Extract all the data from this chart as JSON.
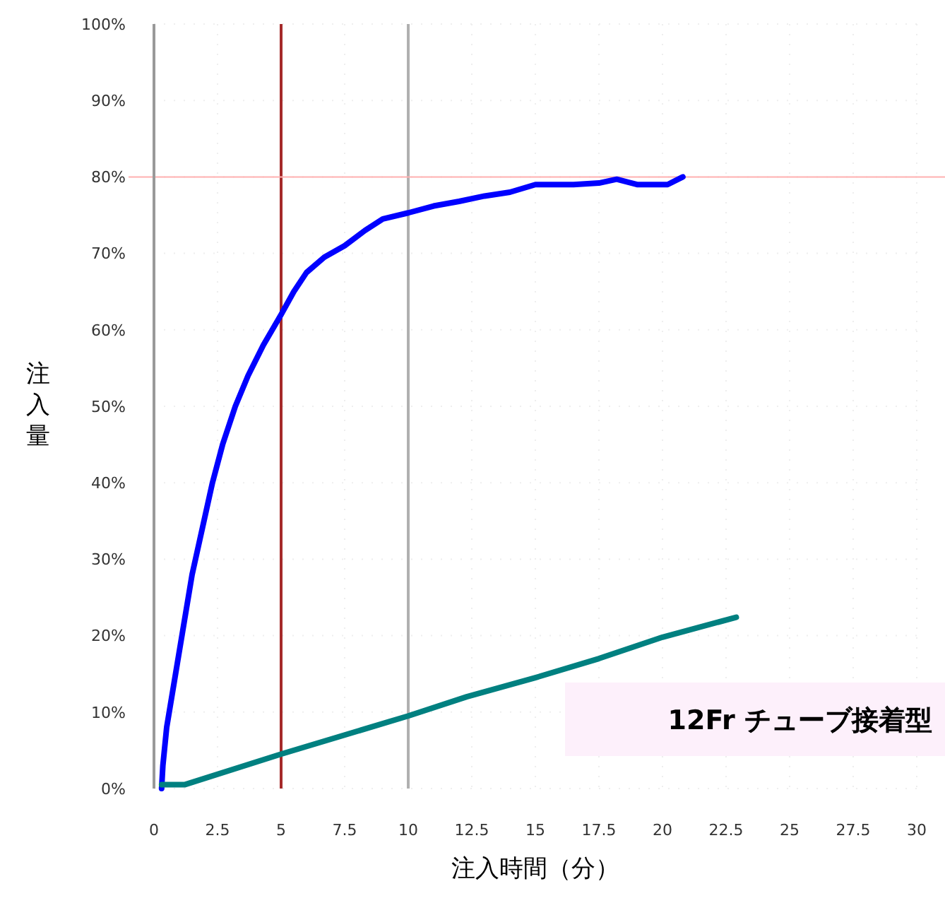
{
  "chart_data": {
    "type": "line",
    "xlabel": "注入時間（分）",
    "ylabel": "注入量",
    "annotations": [
      "12Fr チューブ接着型"
    ],
    "xlim": [
      0,
      30
    ],
    "xticks": [
      0,
      2.5,
      5,
      7.5,
      10,
      12.5,
      15,
      17.5,
      20,
      22.5,
      25,
      27.5,
      30
    ],
    "ylim": [
      0,
      100
    ],
    "yticks": [
      {
        "value": 0,
        "label": "0%"
      },
      {
        "value": 10,
        "label": "10%"
      },
      {
        "value": 20,
        "label": "20%"
      },
      {
        "value": 30,
        "label": "30%"
      },
      {
        "value": 40,
        "label": "40%"
      },
      {
        "value": 50,
        "label": "50%"
      },
      {
        "value": 60,
        "label": "60%"
      },
      {
        "value": 70,
        "label": "70%"
      },
      {
        "value": 80,
        "label": "80%"
      },
      {
        "value": 90,
        "label": "90%"
      },
      {
        "value": 100,
        "label": "100%"
      }
    ],
    "grid": true,
    "marker": "none",
    "line_style": "solid",
    "ref_lines": [
      {
        "axis": "x",
        "value": 5,
        "color": "#a52a2a"
      },
      {
        "axis": "x",
        "value": 10,
        "color": "#b0b0b0"
      },
      {
        "axis": "y",
        "value": 80,
        "color": "#ffb0b0"
      }
    ],
    "series": [
      {
        "color": "#0000ff",
        "x": [
          0.3,
          0.35,
          0.5,
          0.8,
          1.2,
          1.5,
          1.9,
          2.3,
          2.7,
          3.2,
          3.7,
          4.3,
          5,
          5.5,
          6,
          6.7,
          7.5,
          8.3,
          9,
          10,
          11,
          12,
          13,
          14,
          15,
          16.5,
          17.5,
          18.2,
          19,
          20.2,
          20.8
        ],
        "values": [
          0,
          3,
          8,
          14,
          22,
          28,
          34,
          40,
          45,
          50,
          54,
          58,
          62,
          65,
          67.5,
          69.5,
          71,
          73,
          74.5,
          75.3,
          76.2,
          76.8,
          77.5,
          78,
          79,
          79,
          79.2,
          79.7,
          79,
          79,
          80
        ]
      },
      {
        "color": "#008080",
        "x": [
          0.3,
          1.2,
          5,
          10,
          12.3,
          15,
          17.5,
          20,
          22.9
        ],
        "values": [
          0.5,
          0.5,
          4.5,
          9.5,
          12,
          14.5,
          17,
          19.8,
          22.4
        ]
      }
    ]
  }
}
